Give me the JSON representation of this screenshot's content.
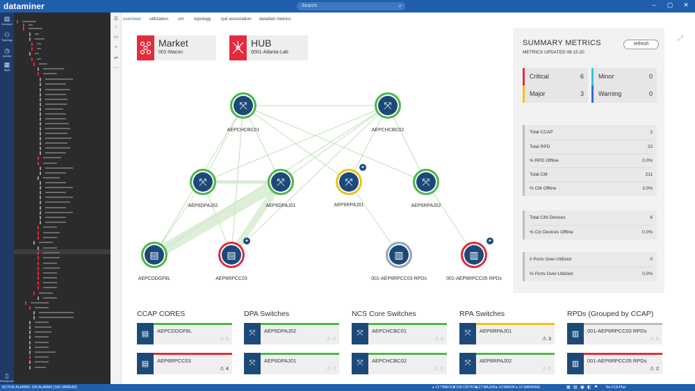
{
  "app": {
    "title": "dataminer",
    "search_placeholder": "Search"
  },
  "rail": [
    {
      "label": "Surveyor",
      "icon": "surveyor-icon",
      "glyph": "▤"
    },
    {
      "label": "Topology",
      "icon": "topology-icon",
      "glyph": "⚇"
    },
    {
      "label": "Activity",
      "icon": "activity-icon",
      "glyph": "◷"
    },
    {
      "label": "Apps",
      "icon": "apps-icon",
      "glyph": "▦"
    },
    {
      "label": "Workspace",
      "icon": "workspace-icon",
      "glyph": "▯"
    }
  ],
  "tabs": [
    "overview",
    "utilization",
    "cm",
    "topology",
    "rpd association",
    "detailed metrics"
  ],
  "cards": {
    "market": {
      "title": "Market",
      "sub": "001-Macon"
    },
    "hub": {
      "title": "HUB",
      "sub": "0001-Atlanta-Lab"
    }
  },
  "nodes": [
    {
      "id": "AEPCHCBC01",
      "label": "AEPCHCBC01",
      "status": "green",
      "glyph": "⤧"
    },
    {
      "id": "AEPCHCBC02",
      "label": "AEPCHCBC02",
      "status": "green",
      "glyph": "⤧"
    },
    {
      "id": "AEP6DPAJ02",
      "label": "AEP6DPAJ02",
      "status": "green",
      "glyph": "⤧"
    },
    {
      "id": "AEP6DPAJ01",
      "label": "AEP6DPAJ01",
      "status": "green",
      "glyph": "⤧"
    },
    {
      "id": "AEP6RPAJ01",
      "label": "AEP6RPAJ01",
      "status": "yellow",
      "glyph": "⤧"
    },
    {
      "id": "AEP6RPAJ02",
      "label": "AEP6RPAJ02",
      "status": "green",
      "glyph": "⤧"
    },
    {
      "id": "AEPCDDGF8L",
      "label": "AEPCDDGF8L",
      "status": "green",
      "glyph": "▤"
    },
    {
      "id": "AEP6RPCC03",
      "label": "AEP6RPCC03",
      "status": "red",
      "glyph": "▤"
    },
    {
      "id": "RPD03",
      "label": "001-AEP6RPCC03 RPDs",
      "status": "gray",
      "glyph": "▥"
    },
    {
      "id": "RPD05",
      "label": "001-AEP6RPCC05 RPDs",
      "status": "red",
      "glyph": "▥"
    }
  ],
  "summary": {
    "title": "SUMMARY METRICS",
    "updated": "METRICS UPDATED 08:15:20",
    "refresh_label": "refresh",
    "alarms": [
      {
        "label": "Critical",
        "value": "6",
        "color": "#e22c3d"
      },
      {
        "label": "Minor",
        "value": "0",
        "color": "#31c6d6"
      },
      {
        "label": "Major",
        "value": "3",
        "color": "#f0c419"
      },
      {
        "label": "Warning",
        "value": "0",
        "color": "#2f6fd1"
      }
    ],
    "groups": [
      [
        {
          "k": "Total CCAP",
          "v": "2"
        },
        {
          "k": "Total RPD",
          "v": "23"
        },
        {
          "k": "% RPD Offline",
          "v": "0.0%"
        },
        {
          "k": "Total CM",
          "v": "211"
        },
        {
          "k": "% CM Offline",
          "v": "3.0%"
        }
      ],
      [
        {
          "k": "Total CIN Devices",
          "v": "6"
        },
        {
          "k": "% Cin Devices Offline",
          "v": "0.0%"
        }
      ],
      [
        {
          "k": "# Ports Over-Utilized",
          "v": "0"
        },
        {
          "k": "% Ports Over-Utilized",
          "v": "0.0%"
        }
      ]
    ]
  },
  "lists": [
    {
      "header": "CCAP CORES",
      "items": [
        {
          "name": "AEPCDDGF8L",
          "count": "0",
          "status": "#4db848",
          "glyph": "▤"
        },
        {
          "name": "AEP6RPCC03",
          "count": "4",
          "status": "#e22c3d",
          "glyph": "▤"
        }
      ]
    },
    {
      "header": "DPA Switches",
      "items": [
        {
          "name": "AEP6DPAJ02",
          "count": "0",
          "status": "#4db848",
          "glyph": "⤧"
        },
        {
          "name": "AEP6DPAJ01",
          "count": "0",
          "status": "#4db848",
          "glyph": "⤧"
        }
      ]
    },
    {
      "header": "NCS Core Switches",
      "items": [
        {
          "name": "AEPCHCBC01",
          "count": "0",
          "status": "#4db848",
          "glyph": "⤧"
        },
        {
          "name": "AEPCHCBC02",
          "count": "0",
          "status": "#4db848",
          "glyph": "⤧"
        }
      ]
    },
    {
      "header": "RPA Switches",
      "items": [
        {
          "name": "AEP6RPAJ01",
          "count": "3",
          "status": "#f0c419",
          "glyph": "⤧"
        },
        {
          "name": "AEP6RPAJ02",
          "count": "0",
          "status": "#4db848",
          "glyph": "⤧"
        }
      ]
    },
    {
      "header": "RPDs (Grouped by CCAP)",
      "items": [
        {
          "name": "001-AEP6RPCC03 RPDs",
          "count": "0",
          "status": "#bdbdbd",
          "glyph": "▥"
        },
        {
          "name": "001-AEP6RPCC05 RPDs",
          "count": "2",
          "status": "#e22c3d",
          "glyph": "▥"
        }
      ]
    }
  ],
  "statusbar": {
    "left": "ACTIVE ALARMS: 100 ALARMS (100 UNREAD)",
    "items": [
      "● 13 TIMEOUT",
      "● 100 CRITICAL",
      "● 27 MAJOR",
      "● 10 MINOR",
      "● 10 WARNING"
    ],
    "right": "No FCA Plan"
  },
  "colors": {
    "brand": "#1f5fae",
    "navy_node": "#1c4a78",
    "ok": "#4db848",
    "critical": "#e22c3d",
    "major": "#f0c419"
  }
}
